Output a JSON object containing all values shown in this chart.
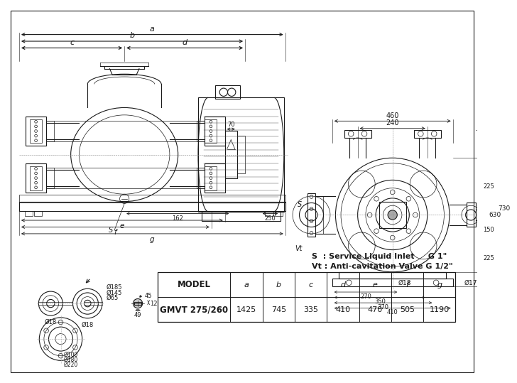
{
  "bg_color": "#ffffff",
  "line_color": "#1a1a1a",
  "dim_color": "#1a1a1a",
  "table_headers": [
    "MODEL",
    "a",
    "b",
    "c",
    "d",
    "e",
    "f",
    "g"
  ],
  "table_row": [
    "GMVT 275/260",
    "1425",
    "745",
    "335",
    "410",
    "470",
    "505",
    "1190"
  ],
  "legend_line1": "S  : Service Liquid Inlet     G 1\"",
  "legend_line2": "Vt : Anti-cavitation Valve G 1/2\"",
  "front_dim_labels": [
    "a",
    "b",
    "c",
    "d",
    "e",
    "f",
    "g"
  ],
  "front_dim_nums": [
    "70",
    "162",
    "250"
  ],
  "right_top_dims": [
    "460",
    "240"
  ],
  "right_vert_dims": [
    "730",
    "630"
  ],
  "right_seg_dims": [
    "225",
    "150",
    "225"
  ],
  "right_dia_labels": [
    "Ø18",
    "Ø17"
  ],
  "right_bot_dims": [
    "270",
    "350",
    "370",
    "410"
  ],
  "flange_side_dims": [
    "Ø65",
    "Ø145",
    "Ø185",
    "Ø18",
    "Ø18"
  ],
  "flange_face_dims": [
    "Ø100",
    "Ø180",
    "Ø220"
  ],
  "bolt_dims": [
    "45",
    "12",
    "49"
  ]
}
